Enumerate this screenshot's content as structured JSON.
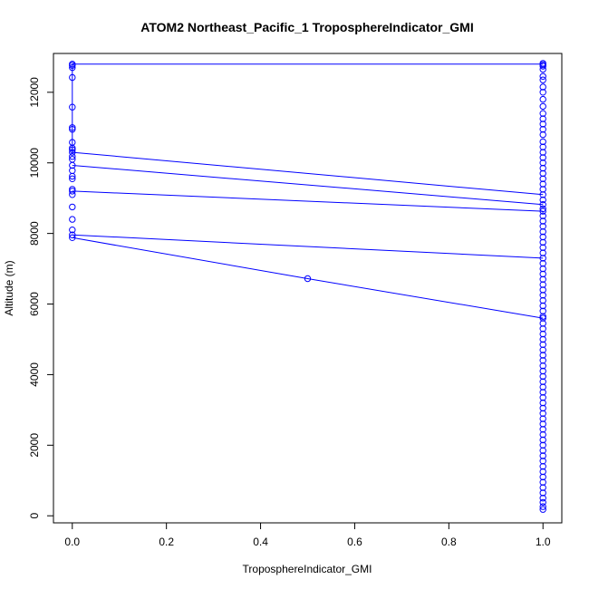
{
  "chart_data": {
    "type": "line",
    "title": "ATOM2 Northeast_Pacific_1 TroposphereIndicator_GMI",
    "xlabel": "TroposphereIndicator_GMI",
    "ylabel": "Altitude (m)",
    "xlim": [
      -0.04,
      1.04
    ],
    "ylim": [
      -200,
      13100
    ],
    "xticks": [
      0,
      0.2,
      0.4,
      0.6,
      0.8,
      1
    ],
    "xtick_labels": [
      "0.0",
      "0.2",
      "0.4",
      "0.6",
      "0.8",
      "1.0"
    ],
    "yticks": [
      0,
      2000,
      4000,
      6000,
      8000,
      10000,
      12000
    ],
    "ytick_labels": [
      "0",
      "2000",
      "4000",
      "6000",
      "8000",
      "10000",
      "12000"
    ],
    "grid": false,
    "legend": "none",
    "series_color": "#0000ff",
    "segments": [
      [
        [
          0,
          12800
        ],
        [
          1,
          12800
        ]
      ],
      [
        [
          0,
          10300
        ],
        [
          1,
          9100
        ]
      ],
      [
        [
          0,
          9930
        ],
        [
          1,
          8820
        ]
      ],
      [
        [
          0,
          9200
        ],
        [
          1,
          8630
        ]
      ],
      [
        [
          0,
          7960
        ],
        [
          1,
          7300
        ]
      ],
      [
        [
          0,
          7880
        ],
        [
          0.5,
          6720
        ],
        [
          1,
          5600
        ]
      ],
      [
        [
          0,
          12800
        ],
        [
          0,
          12420
        ],
        [
          0,
          11580
        ],
        [
          0,
          11000
        ],
        [
          0,
          10580
        ],
        [
          0,
          10300
        ]
      ]
    ],
    "points": [
      [
        0,
        12800
      ],
      [
        0,
        12760
      ],
      [
        0,
        12700
      ],
      [
        0,
        12420
      ],
      [
        0,
        11580
      ],
      [
        0,
        11000
      ],
      [
        0,
        10950
      ],
      [
        0,
        10580
      ],
      [
        0,
        10420
      ],
      [
        0,
        10370
      ],
      [
        0,
        10300
      ],
      [
        0,
        10180
      ],
      [
        0,
        10100
      ],
      [
        0,
        9930
      ],
      [
        0,
        9780
      ],
      [
        0,
        9620
      ],
      [
        0,
        9550
      ],
      [
        0,
        9250
      ],
      [
        0,
        9200
      ],
      [
        0,
        9100
      ],
      [
        0,
        8750
      ],
      [
        0,
        8400
      ],
      [
        0,
        8100
      ],
      [
        0,
        7960
      ],
      [
        0,
        7880
      ],
      [
        0.5,
        6720
      ],
      [
        1,
        12820
      ],
      [
        1,
        12780
      ],
      [
        1,
        12740
      ],
      [
        1,
        12650
      ],
      [
        1,
        12450
      ],
      [
        1,
        12350
      ],
      [
        1,
        12150
      ],
      [
        1,
        12000
      ],
      [
        1,
        11800
      ],
      [
        1,
        11600
      ],
      [
        1,
        11400
      ],
      [
        1,
        11250
      ],
      [
        1,
        11100
      ],
      [
        1,
        10950
      ],
      [
        1,
        10800
      ],
      [
        1,
        10600
      ],
      [
        1,
        10450
      ],
      [
        1,
        10300
      ],
      [
        1,
        10150
      ],
      [
        1,
        10000
      ],
      [
        1,
        9850
      ],
      [
        1,
        9700
      ],
      [
        1,
        9550
      ],
      [
        1,
        9400
      ],
      [
        1,
        9250
      ],
      [
        1,
        9100
      ],
      [
        1,
        8950
      ],
      [
        1,
        8820
      ],
      [
        1,
        8700
      ],
      [
        1,
        8630
      ],
      [
        1,
        8500
      ],
      [
        1,
        8350
      ],
      [
        1,
        8200
      ],
      [
        1,
        8050
      ],
      [
        1,
        7900
      ],
      [
        1,
        7750
      ],
      [
        1,
        7600
      ],
      [
        1,
        7450
      ],
      [
        1,
        7300
      ],
      [
        1,
        7150
      ],
      [
        1,
        7000
      ],
      [
        1,
        6850
      ],
      [
        1,
        6700
      ],
      [
        1,
        6550
      ],
      [
        1,
        6400
      ],
      [
        1,
        6250
      ],
      [
        1,
        6100
      ],
      [
        1,
        5950
      ],
      [
        1,
        5800
      ],
      [
        1,
        5650
      ],
      [
        1,
        5600
      ],
      [
        1,
        5450
      ],
      [
        1,
        5300
      ],
      [
        1,
        5150
      ],
      [
        1,
        5000
      ],
      [
        1,
        4850
      ],
      [
        1,
        4700
      ],
      [
        1,
        4550
      ],
      [
        1,
        4400
      ],
      [
        1,
        4250
      ],
      [
        1,
        4100
      ],
      [
        1,
        3950
      ],
      [
        1,
        3800
      ],
      [
        1,
        3650
      ],
      [
        1,
        3500
      ],
      [
        1,
        3350
      ],
      [
        1,
        3200
      ],
      [
        1,
        3050
      ],
      [
        1,
        2900
      ],
      [
        1,
        2750
      ],
      [
        1,
        2600
      ],
      [
        1,
        2450
      ],
      [
        1,
        2300
      ],
      [
        1,
        2150
      ],
      [
        1,
        2000
      ],
      [
        1,
        1850
      ],
      [
        1,
        1700
      ],
      [
        1,
        1550
      ],
      [
        1,
        1400
      ],
      [
        1,
        1250
      ],
      [
        1,
        1100
      ],
      [
        1,
        950
      ],
      [
        1,
        800
      ],
      [
        1,
        650
      ],
      [
        1,
        500
      ],
      [
        1,
        380
      ],
      [
        1,
        260
      ],
      [
        1,
        180
      ]
    ]
  }
}
